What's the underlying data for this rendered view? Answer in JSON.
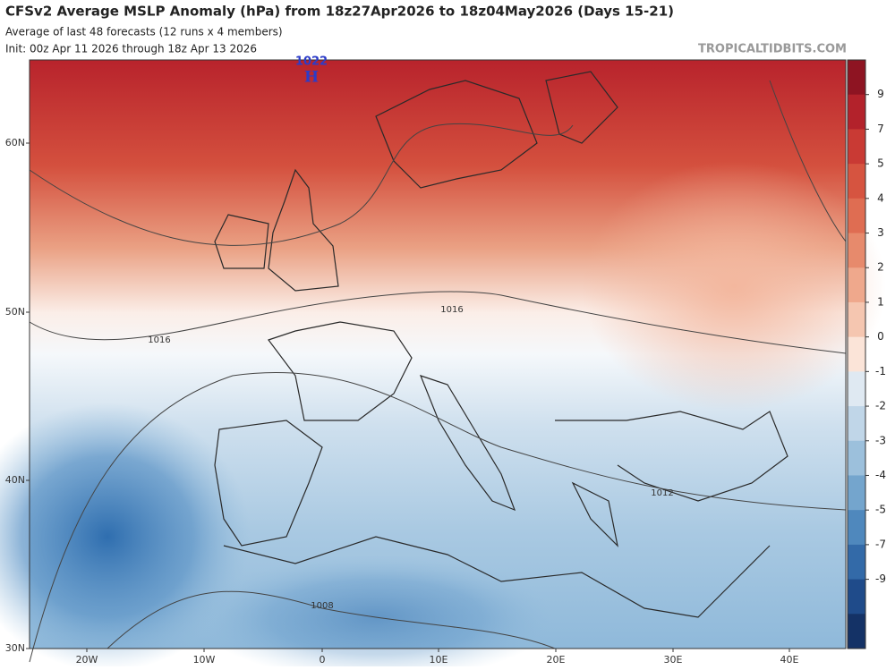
{
  "header": {
    "title": "CFSv2 Average MSLP Anomaly (hPa) from 18z27Apr2026 to 18z04May2026 (Days 15-21)",
    "subtitle": "Average of last 48 forecasts (12 runs x 4 members)",
    "init": "Init: 00z Apr 11 2026 through 18z Apr 13 2026",
    "credit": "TROPICALTIDBITS.COM"
  },
  "map": {
    "lat_labels": [
      "60N",
      "50N",
      "40N",
      "30N"
    ],
    "lon_labels": [
      "20W",
      "10W",
      "0",
      "10E",
      "20E",
      "30E",
      "40E"
    ],
    "isobar_labels": [
      "1016",
      "1016",
      "1012",
      "1008"
    ],
    "high": {
      "value": "1022",
      "symbol": "H"
    }
  },
  "colorbar": {
    "labels": [
      9,
      7,
      5,
      4,
      3,
      2,
      1,
      0,
      -1,
      -2,
      -3,
      -4,
      -5,
      -7,
      -9
    ],
    "colors": [
      "#8e1422",
      "#b3222b",
      "#c93a34",
      "#d65440",
      "#df6d52",
      "#e78a6c",
      "#efa88c",
      "#f5c6b0",
      "#fbe4d8",
      "#dfe9f2",
      "#c0d6e8",
      "#9cc0dc",
      "#74a5cd",
      "#4f88bd",
      "#336aa8",
      "#1f4b8a",
      "#143266"
    ]
  }
}
